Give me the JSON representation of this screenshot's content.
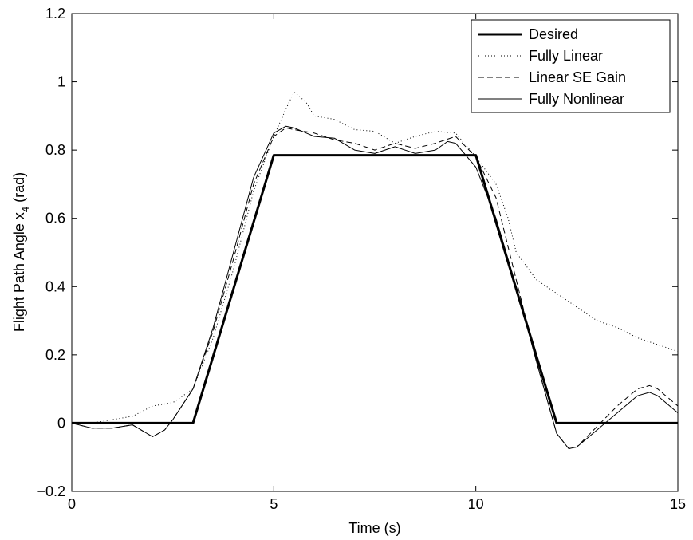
{
  "chart_data": {
    "type": "line",
    "title": "",
    "xlabel": "Time (s)",
    "ylabel": "Flight Path Angle x",
    "ylabel_subscript": "4",
    "ylabel_unit": " (rad)",
    "xlim": [
      0,
      15
    ],
    "ylim": [
      -0.2,
      1.2
    ],
    "xticks": [
      0,
      5,
      10,
      15
    ],
    "xtick_labels": [
      "0",
      "5",
      "10",
      "15"
    ],
    "yticks": [
      -0.2,
      0,
      0.2,
      0.4,
      0.6,
      0.8,
      1.0,
      1.2
    ],
    "ytick_labels": [
      "−0.2",
      "0",
      "0.2",
      "0.4",
      "0.6",
      "0.8",
      "1",
      "1.2"
    ],
    "grid": false,
    "legend_position": "top-right",
    "series": [
      {
        "name": "Desired",
        "style": "solid-thick",
        "x": [
          0,
          3,
          5,
          10,
          12,
          15
        ],
        "y": [
          0,
          0,
          0.785,
          0.785,
          0,
          0
        ]
      },
      {
        "name": "Fully Linear",
        "style": "dotted",
        "x": [
          0,
          0.5,
          1.0,
          1.5,
          2.0,
          2.5,
          3.0,
          3.5,
          4.0,
          4.5,
          5.0,
          5.3,
          5.5,
          5.8,
          6.0,
          6.5,
          7.0,
          7.5,
          8.0,
          8.5,
          9.0,
          9.5,
          10.0,
          10.5,
          10.8,
          11.0,
          11.5,
          12.0,
          12.5,
          13.0,
          13.5,
          14.0,
          14.5,
          15.0
        ],
        "y": [
          0,
          0,
          0.01,
          0.02,
          0.05,
          0.06,
          0.1,
          0.25,
          0.45,
          0.68,
          0.84,
          0.92,
          0.97,
          0.94,
          0.9,
          0.89,
          0.86,
          0.855,
          0.82,
          0.84,
          0.855,
          0.85,
          0.78,
          0.7,
          0.6,
          0.5,
          0.42,
          0.38,
          0.34,
          0.3,
          0.28,
          0.25,
          0.23,
          0.21
        ]
      },
      {
        "name": "Linear SE Gain",
        "style": "dashed",
        "x": [
          0,
          0.5,
          1.0,
          1.5,
          2.0,
          2.3,
          2.5,
          3.0,
          3.5,
          4.0,
          4.5,
          5.0,
          5.3,
          5.5,
          6.0,
          6.5,
          7.0,
          7.5,
          8.0,
          8.5,
          9.0,
          9.5,
          10.0,
          10.5,
          11.0,
          11.5,
          12.0,
          12.3,
          12.5,
          13.0,
          13.5,
          14.0,
          14.3,
          14.5,
          15.0
        ],
        "y": [
          0,
          -0.015,
          -0.015,
          -0.005,
          -0.04,
          -0.02,
          0.01,
          0.1,
          0.27,
          0.48,
          0.7,
          0.84,
          0.865,
          0.86,
          0.85,
          0.83,
          0.82,
          0.8,
          0.82,
          0.805,
          0.82,
          0.84,
          0.78,
          0.66,
          0.42,
          0.18,
          -0.03,
          -0.075,
          -0.07,
          -0.01,
          0.05,
          0.1,
          0.11,
          0.1,
          0.05
        ]
      },
      {
        "name": "Fully Nonlinear",
        "style": "solid-thin",
        "x": [
          0,
          0.5,
          1.0,
          1.5,
          2.0,
          2.3,
          2.5,
          3.0,
          3.5,
          4.0,
          4.5,
          5.0,
          5.3,
          5.5,
          6.0,
          6.5,
          7.0,
          7.5,
          8.0,
          8.5,
          9.0,
          9.3,
          9.5,
          10.0,
          10.5,
          11.0,
          11.5,
          12.0,
          12.3,
          12.5,
          13.0,
          13.5,
          14.0,
          14.3,
          14.5,
          15.0
        ],
        "y": [
          0,
          -0.015,
          -0.015,
          -0.005,
          -0.04,
          -0.02,
          0.01,
          0.1,
          0.28,
          0.5,
          0.72,
          0.85,
          0.87,
          0.865,
          0.84,
          0.835,
          0.8,
          0.79,
          0.81,
          0.79,
          0.8,
          0.825,
          0.82,
          0.75,
          0.6,
          0.4,
          0.18,
          -0.03,
          -0.075,
          -0.07,
          -0.02,
          0.03,
          0.08,
          0.09,
          0.08,
          0.03
        ]
      }
    ]
  }
}
